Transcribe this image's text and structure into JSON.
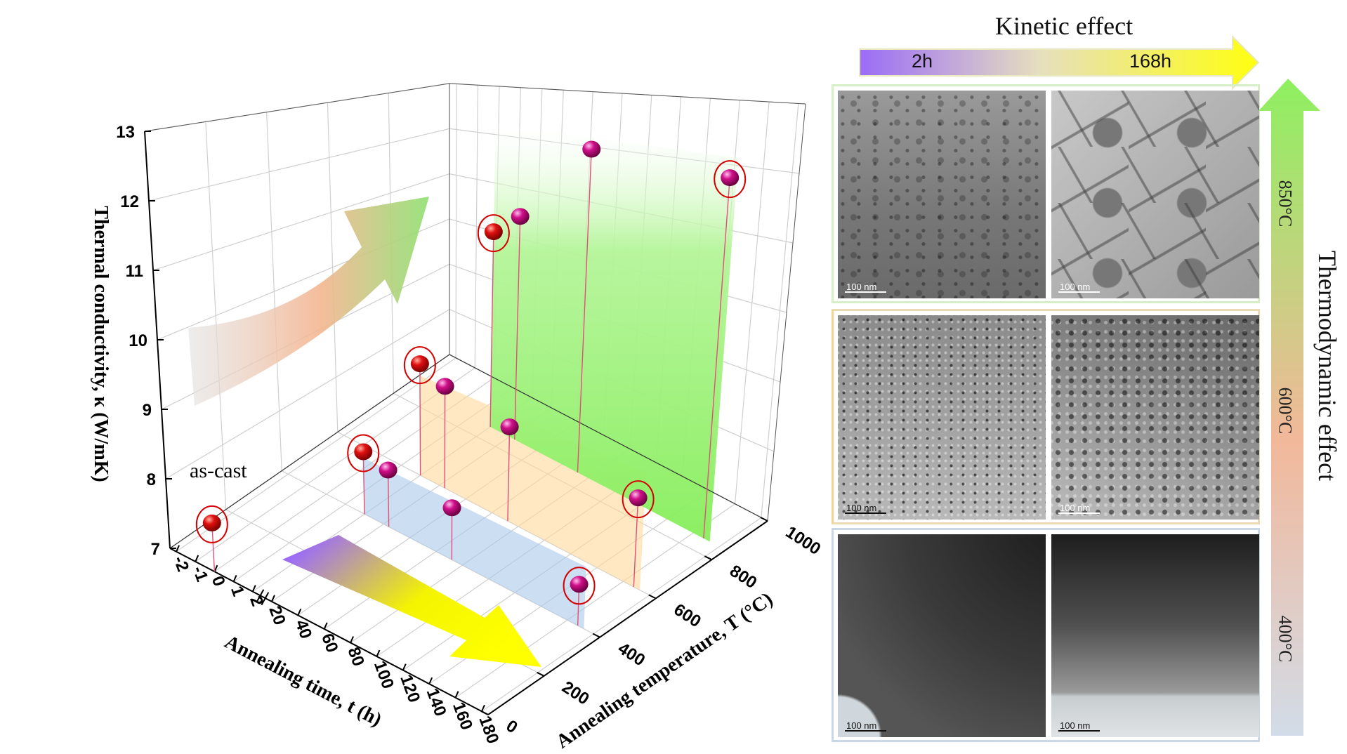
{
  "chart_data": {
    "type": "scatter3d",
    "xlabel": "Annealing time, t (h)",
    "ylabel": "Annealing temperature, T (°C)",
    "zlabel": "Thermal conductivity, κ (W/mK)",
    "x_ticks": [
      "-2",
      "-1",
      "0",
      "1",
      "2",
      "20",
      "40",
      "60",
      "80",
      "100",
      "120",
      "140",
      "160",
      "180"
    ],
    "x_axis_break": "2–20",
    "y_ticks": [
      "0",
      "200",
      "400",
      "600",
      "800",
      "1000"
    ],
    "z_ticks": [
      "7",
      "8",
      "9",
      "10",
      "11",
      "12",
      "13"
    ],
    "xlim": [
      -2,
      180
    ],
    "ylim": [
      0,
      1000
    ],
    "zlim": [
      7,
      13
    ],
    "grid": true,
    "annotation": "as-cast",
    "points": [
      {
        "t": 0,
        "T": 0,
        "k": 7.7,
        "circled": true,
        "color": "#d40000",
        "label": "as-cast"
      },
      {
        "t": 2,
        "T": 400,
        "k": 8.0,
        "circled": true,
        "color": "#d40000"
      },
      {
        "t": 2,
        "T": 600,
        "k": 8.9,
        "circled": true,
        "color": "#d40000"
      },
      {
        "t": 2,
        "T": 850,
        "k": 10.6,
        "circled": true,
        "color": "#d40000"
      },
      {
        "t": 24,
        "T": 400,
        "k": 7.9,
        "circled": false,
        "color": "#d0108a"
      },
      {
        "t": 24,
        "T": 600,
        "k": 8.7,
        "circled": false,
        "color": "#d0108a"
      },
      {
        "t": 24,
        "T": 850,
        "k": 11.0,
        "circled": false,
        "color": "#d0108a"
      },
      {
        "t": 72,
        "T": 400,
        "k": 7.8,
        "circled": false,
        "color": "#d0108a"
      },
      {
        "t": 72,
        "T": 600,
        "k": 8.5,
        "circled": false,
        "color": "#d0108a"
      },
      {
        "t": 72,
        "T": 850,
        "k": 12.4,
        "circled": false,
        "color": "#d0108a"
      },
      {
        "t": 168,
        "T": 400,
        "k": 7.6,
        "circled": true,
        "color": "#d0108a"
      },
      {
        "t": 168,
        "T": 600,
        "k": 8.3,
        "circled": true,
        "color": "#d0108a"
      },
      {
        "t": 168,
        "T": 850,
        "k": 12.3,
        "circled": true,
        "color": "#d0108a"
      }
    ],
    "planes": [
      {
        "T": 400,
        "color": "#a9c8ea"
      },
      {
        "T": 600,
        "color": "#ffd99a"
      },
      {
        "T": 850,
        "color": "#86ee5a"
      }
    ]
  },
  "kinetic": {
    "title": "Kinetic effect",
    "start": "2h",
    "end": "168h"
  },
  "thermodynamic": {
    "title": "Thermodynamic effect",
    "levels": [
      "850°C",
      "600°C",
      "400°C"
    ]
  },
  "micrographs": {
    "row1": {
      "left_scale": "100 nm",
      "right_scale": "100 nm",
      "border": "#d6efc6"
    },
    "row2": {
      "left_scale": "100 nm",
      "right_scale": "100 nm",
      "border": "#eadbb5"
    },
    "row3": {
      "left_scale": "100 nm",
      "right_scale": "100 nm",
      "border": "#c9d7e6"
    }
  },
  "colors": {
    "gray_arrow": [
      "#dddddd",
      "#f4b590",
      "#8fe070"
    ],
    "floor_arrow": [
      "#9b6cf7",
      "#f4f400"
    ]
  }
}
